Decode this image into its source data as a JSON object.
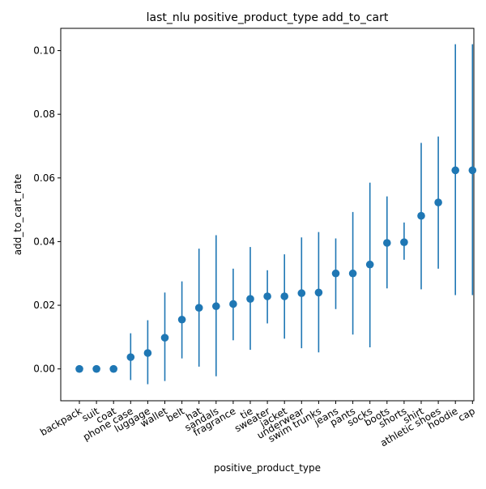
{
  "chart_data": {
    "type": "scatter",
    "title": "last_nlu positive_product_type add_to_cart",
    "xlabel": "positive_product_type",
    "ylabel": "add_to_cart_rate",
    "ylim": [
      -0.01,
      0.107
    ],
    "y_ticks": [
      "0.00",
      "0.02",
      "0.04",
      "0.06",
      "0.08",
      "0.10"
    ],
    "y_tick_values": [
      0.0,
      0.02,
      0.04,
      0.06,
      0.08,
      0.1
    ],
    "grid": false,
    "legend": "none",
    "marker_color": "#1f77b4",
    "categories": [
      "backpack",
      "suit",
      "coat",
      "phone case",
      "luggage",
      "wallet",
      "belt",
      "hat",
      "sandals",
      "fragrance",
      "tie",
      "sweater",
      "jacket",
      "underwear",
      "swim trunks",
      "jeans",
      "pants",
      "socks",
      "boots",
      "shorts",
      "shirt",
      "athletic shoes",
      "hoodie",
      "cap"
    ],
    "values": [
      0.0,
      0.0,
      0.0,
      0.0037,
      0.005,
      0.0098,
      0.0155,
      0.0192,
      0.0197,
      0.0204,
      0.022,
      0.0228,
      0.0228,
      0.0238,
      0.024,
      0.03,
      0.03,
      0.0328,
      0.0396,
      0.0398,
      0.0481,
      0.0523,
      0.0624,
      0.0624
    ],
    "err_low": [
      0.0,
      0.0,
      0.0,
      -0.0035,
      -0.0048,
      -0.0038,
      0.0033,
      0.0007,
      -0.0023,
      0.009,
      0.006,
      0.0143,
      0.0095,
      0.0065,
      0.0052,
      0.0188,
      0.0108,
      0.0068,
      0.0253,
      0.0343,
      0.025,
      0.0315,
      0.0232,
      0.0232
    ],
    "err_high": [
      0.0,
      0.0,
      0.0,
      0.0112,
      0.0153,
      0.024,
      0.0275,
      0.0378,
      0.042,
      0.0315,
      0.0383,
      0.031,
      0.036,
      0.0413,
      0.043,
      0.041,
      0.0493,
      0.0585,
      0.0542,
      0.046,
      0.071,
      0.073,
      0.102,
      0.102
    ]
  }
}
